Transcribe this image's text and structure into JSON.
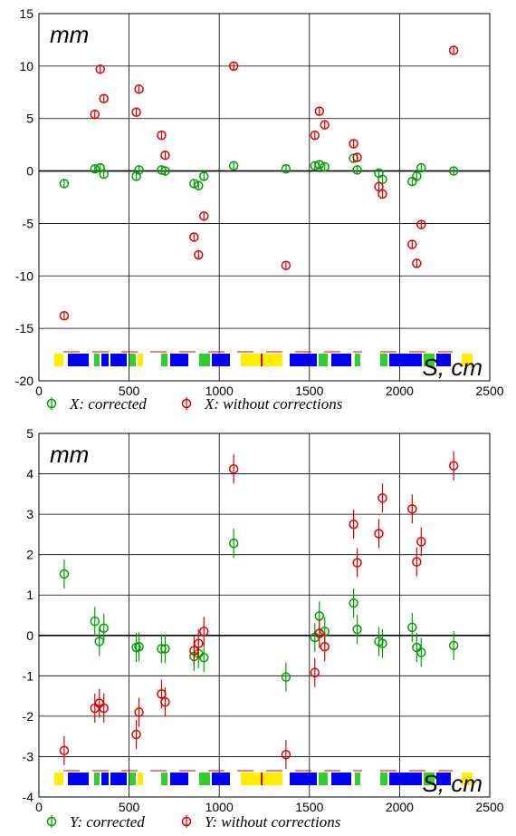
{
  "chart_data": [
    {
      "type": "scatter",
      "ylabel_unit": "mm",
      "xlabel_unit": "S, cm",
      "xlim": [
        0,
        2500
      ],
      "ylim": [
        -20,
        15
      ],
      "x_ticks": [
        0,
        500,
        1000,
        1500,
        2000,
        2500
      ],
      "y_ticks": [
        15,
        10,
        5,
        0,
        -5,
        -10,
        -15,
        -20
      ],
      "grid": true,
      "legend_position": "bottom",
      "series": [
        {
          "name": "X: corrected",
          "color": "#00a000",
          "points": [
            [
              140,
              -1.2
            ],
            [
              310,
              0.2
            ],
            [
              340,
              0.3
            ],
            [
              360,
              -0.3
            ],
            [
              540,
              -0.5
            ],
            [
              555,
              0.1
            ],
            [
              680,
              0.1
            ],
            [
              700,
              0.0
            ],
            [
              860,
              -1.2
            ],
            [
              885,
              -1.4
            ],
            [
              915,
              -0.5
            ],
            [
              1080,
              0.5
            ],
            [
              1370,
              0.2
            ],
            [
              1530,
              0.5
            ],
            [
              1555,
              0.6
            ],
            [
              1585,
              0.4
            ],
            [
              1745,
              1.2
            ],
            [
              1765,
              0.1
            ],
            [
              1885,
              -0.2
            ],
            [
              1905,
              -0.8
            ],
            [
              2070,
              -1.0
            ],
            [
              2095,
              -0.5
            ],
            [
              2120,
              0.3
            ],
            [
              2300,
              0.0
            ]
          ]
        },
        {
          "name": "X: without corrections",
          "color": "#e00000",
          "points": [
            [
              140,
              -13.8
            ],
            [
              310,
              5.4
            ],
            [
              340,
              9.7
            ],
            [
              360,
              6.9
            ],
            [
              540,
              5.6
            ],
            [
              555,
              7.8
            ],
            [
              680,
              3.4
            ],
            [
              700,
              1.5
            ],
            [
              860,
              -6.3
            ],
            [
              885,
              -8.0
            ],
            [
              915,
              -4.3
            ],
            [
              1080,
              10.0
            ],
            [
              1370,
              -9.0
            ],
            [
              1530,
              3.4
            ],
            [
              1555,
              5.7
            ],
            [
              1585,
              4.4
            ],
            [
              1745,
              2.6
            ],
            [
              1765,
              1.3
            ],
            [
              1885,
              -1.5
            ],
            [
              1905,
              -2.2
            ],
            [
              2070,
              -7.0
            ],
            [
              2095,
              -8.8
            ],
            [
              2120,
              -5.1
            ],
            [
              2300,
              11.5
            ]
          ]
        }
      ]
    },
    {
      "type": "scatter",
      "ylabel_unit": "mm",
      "xlabel_unit": "S, cm",
      "xlim": [
        0,
        2500
      ],
      "ylim": [
        -4,
        5
      ],
      "x_ticks": [
        0,
        500,
        1000,
        1500,
        2000,
        2500
      ],
      "y_ticks": [
        5,
        4,
        3,
        2,
        1,
        0,
        -1,
        -2,
        -3,
        -4
      ],
      "grid": true,
      "legend_position": "bottom",
      "series": [
        {
          "name": "Y: corrected",
          "color": "#00a000",
          "points": [
            [
              140,
              1.52
            ],
            [
              310,
              0.35
            ],
            [
              335,
              -0.15
            ],
            [
              360,
              0.18
            ],
            [
              540,
              -0.3
            ],
            [
              555,
              -0.28
            ],
            [
              680,
              -0.33
            ],
            [
              700,
              -0.33
            ],
            [
              860,
              -0.52
            ],
            [
              885,
              -0.45
            ],
            [
              915,
              -0.55
            ],
            [
              1080,
              2.28
            ],
            [
              1370,
              -1.03
            ],
            [
              1530,
              -0.05
            ],
            [
              1555,
              0.48
            ],
            [
              1585,
              0.1
            ],
            [
              1745,
              0.8
            ],
            [
              1765,
              0.15
            ],
            [
              1885,
              -0.15
            ],
            [
              1905,
              -0.2
            ],
            [
              2070,
              0.2
            ],
            [
              2095,
              -0.3
            ],
            [
              2120,
              -0.42
            ],
            [
              2300,
              -0.25
            ]
          ]
        },
        {
          "name": "Y: without corrections",
          "color": "#e00000",
          "points": [
            [
              140,
              -2.85
            ],
            [
              310,
              -1.8
            ],
            [
              335,
              -1.68
            ],
            [
              360,
              -1.8
            ],
            [
              540,
              -2.45
            ],
            [
              555,
              -1.9
            ],
            [
              680,
              -1.45
            ],
            [
              700,
              -1.65
            ],
            [
              860,
              -0.38
            ],
            [
              885,
              -0.2
            ],
            [
              915,
              0.1
            ],
            [
              1080,
              4.12
            ],
            [
              1370,
              -2.95
            ],
            [
              1530,
              -0.92
            ],
            [
              1555,
              0.05
            ],
            [
              1585,
              -0.28
            ],
            [
              1745,
              2.75
            ],
            [
              1765,
              1.8
            ],
            [
              1885,
              2.52
            ],
            [
              1905,
              3.4
            ],
            [
              2070,
              3.13
            ],
            [
              2095,
              1.82
            ],
            [
              2120,
              2.32
            ],
            [
              2300,
              4.2
            ]
          ]
        }
      ]
    }
  ]
}
